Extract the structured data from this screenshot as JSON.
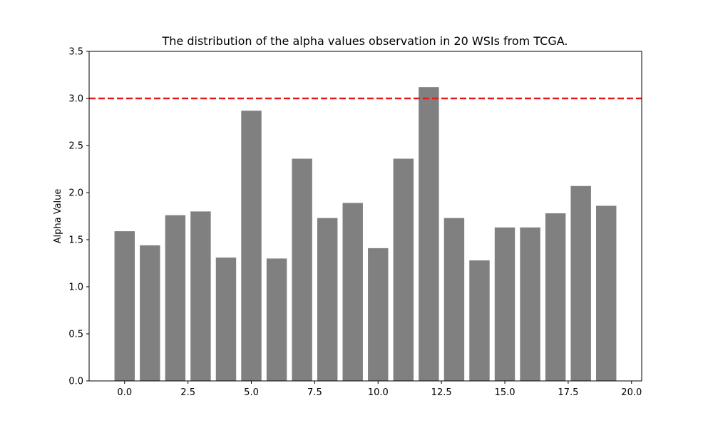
{
  "chart_data": {
    "type": "bar",
    "title": "The distribution of the alpha values observation in 20 WSIs from TCGA.",
    "xlabel": "",
    "ylabel": "Alpha Value",
    "x": [
      0,
      1,
      2,
      3,
      4,
      5,
      6,
      7,
      8,
      9,
      10,
      11,
      12,
      13,
      14,
      15,
      16,
      17,
      18,
      19
    ],
    "values": [
      1.59,
      1.44,
      1.76,
      1.8,
      1.31,
      2.87,
      1.3,
      2.36,
      1.73,
      1.89,
      1.41,
      2.36,
      3.12,
      1.73,
      1.28,
      1.63,
      1.63,
      1.78,
      2.07,
      1.86
    ],
    "xlim": [
      -1.4,
      20.4
    ],
    "ylim": [
      0,
      3.5
    ],
    "x_ticks": [
      "0.0",
      "2.5",
      "5.0",
      "7.5",
      "10.0",
      "12.5",
      "15.0",
      "17.5",
      "20.0"
    ],
    "y_ticks": [
      "0.0",
      "0.5",
      "1.0",
      "1.5",
      "2.0",
      "2.5",
      "3.0",
      "3.5"
    ],
    "threshold_line": {
      "y": 3.0,
      "style": "dashed",
      "color": "#e41a1c"
    },
    "bar_color": "#808080",
    "grid": false,
    "legend": "none"
  }
}
